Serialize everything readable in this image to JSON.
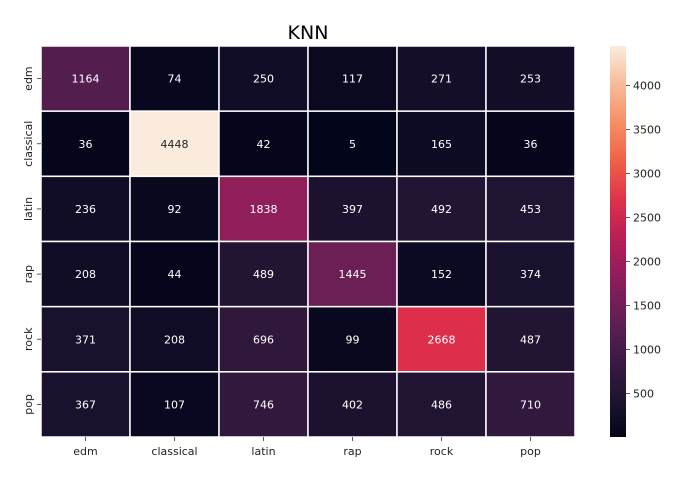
{
  "chart_data": {
    "type": "heatmap",
    "title": "KNN",
    "xlabel": "",
    "ylabel": "",
    "x_categories": [
      "edm",
      "classical",
      "latin",
      "rap",
      "rock",
      "pop"
    ],
    "y_categories": [
      "edm",
      "classical",
      "latin",
      "rap",
      "rock",
      "pop"
    ],
    "values": [
      [
        1164,
        74,
        250,
        117,
        271,
        253
      ],
      [
        36,
        4448,
        42,
        5,
        165,
        36
      ],
      [
        236,
        92,
        1838,
        397,
        492,
        453
      ],
      [
        208,
        44,
        489,
        1445,
        152,
        374
      ],
      [
        371,
        208,
        696,
        99,
        2668,
        487
      ],
      [
        367,
        107,
        746,
        402,
        486,
        710
      ]
    ],
    "value_range": [
      5,
      4448
    ],
    "colormap": "rocket",
    "colorbar_ticks": [
      500,
      1000,
      1500,
      2000,
      2500,
      3000,
      3500,
      4000
    ],
    "colorbar_tick_labels": [
      "500",
      "1000",
      "1500",
      "2000",
      "2500",
      "3000",
      "3500",
      "4000"
    ]
  }
}
